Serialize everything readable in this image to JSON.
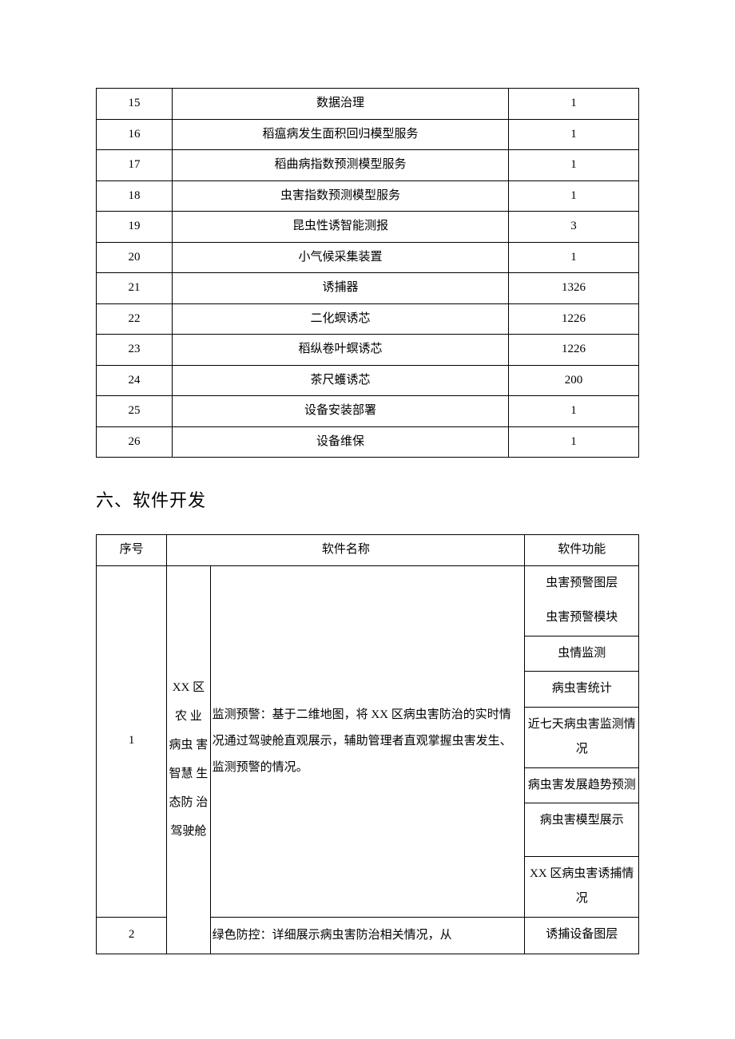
{
  "table1": {
    "rows": [
      {
        "num": "15",
        "name": "数据治理",
        "qty": "1"
      },
      {
        "num": "16",
        "name": "稻瘟病发生面积回归模型服务",
        "qty": "1"
      },
      {
        "num": "17",
        "name": "稻曲病指数预测模型服务",
        "qty": "1"
      },
      {
        "num": "18",
        "name": "虫害指数预测模型服务",
        "qty": "1"
      },
      {
        "num": "19",
        "name": "昆虫性诱智能测报",
        "qty": "3"
      },
      {
        "num": "20",
        "name": "小气候采集装置",
        "qty": "1"
      },
      {
        "num": "21",
        "name": "诱捕器",
        "qty": "1326"
      },
      {
        "num": "22",
        "name": "二化螟诱芯",
        "qty": "1226"
      },
      {
        "num": "23",
        "name": "稻纵卷叶螟诱芯",
        "qty": "1226"
      },
      {
        "num": "24",
        "name": "茶尺蠖诱芯",
        "qty": "200"
      },
      {
        "num": "25",
        "name": "设备安装部署",
        "qty": "1"
      },
      {
        "num": "26",
        "name": "设备维保",
        "qty": "1"
      }
    ]
  },
  "heading": "六、软件开发",
  "table2": {
    "header": {
      "col1": "序号",
      "col2": "软件名称",
      "col3": "软件功能"
    },
    "row1": {
      "num": "1",
      "category": "XX 区农 业 病虫 害 智慧 生 态防 治 驾驶舱",
      "desc": "监测预警：基于二维地图，将 XX 区病虫害防治的实时情况通过驾驶舱直观展示，辅助管理者直观掌握虫害发生、监测预警的情况。",
      "functions": [
        "虫害预警图层",
        "虫害预警模块",
        "虫情监测",
        "病虫害统计",
        "近七天病虫害监测情况",
        "病虫害发展趋势预测",
        "病虫害模型展示",
        "XX 区病虫害诱捕情况"
      ]
    },
    "row2": {
      "num": "2",
      "desc": "绿色防控：详细展示病虫害防治相关情况，从",
      "func": "诱捕设备图层"
    }
  }
}
